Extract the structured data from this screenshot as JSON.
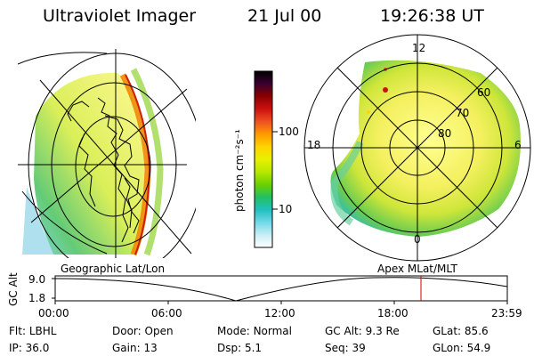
{
  "header": {
    "title": "Ultraviolet Imager",
    "date": "21 Jul 00",
    "time": "19:26:38 UT"
  },
  "colorbar": {
    "unit_label": "photon cm⁻²s⁻¹",
    "tick_labels": [
      "100",
      "10"
    ],
    "colors": [
      "#000000",
      "#3a0030",
      "#8b0000",
      "#cc1010",
      "#ee5020",
      "#ff9a00",
      "#ffd400",
      "#e8f000",
      "#b8e800",
      "#6cd000",
      "#22c060",
      "#20c0c0",
      "#70d8e8",
      "#c8eef4",
      "#ffffff"
    ]
  },
  "geo_map": {
    "caption": "Geographic Lat/Lon"
  },
  "polar_map": {
    "caption": "Apex MLat/MLT",
    "mlt_labels": {
      "top": "12",
      "left": "18",
      "right": "6",
      "bottom": "0"
    },
    "lat_labels": [
      "60",
      "70",
      "80"
    ]
  },
  "altitude_plot": {
    "ylabel": "GC Alt",
    "y_ticks": [
      "9.0",
      "1.8"
    ],
    "x_ticks": [
      "00:00",
      "06:00",
      "12:00",
      "18:00",
      "23:59"
    ],
    "marker_color": "#cc0000"
  },
  "status": {
    "row1": [
      {
        "label": "Flt:",
        "value": "LBHL"
      },
      {
        "label": "Door:",
        "value": "Open"
      },
      {
        "label": "Mode:",
        "value": "Normal"
      },
      {
        "label": "GC Alt:",
        "value": "9.3 Re"
      },
      {
        "label": "GLat:",
        "value": "85.6"
      }
    ],
    "row2": [
      {
        "label": "IP:",
        "value": "36.0"
      },
      {
        "label": "Gain:",
        "value": "13"
      },
      {
        "label": "Dsp:",
        "value": "5.1"
      },
      {
        "label": "Seq:",
        "value": "39"
      },
      {
        "label": "GLon:",
        "value": "54.9"
      }
    ]
  }
}
